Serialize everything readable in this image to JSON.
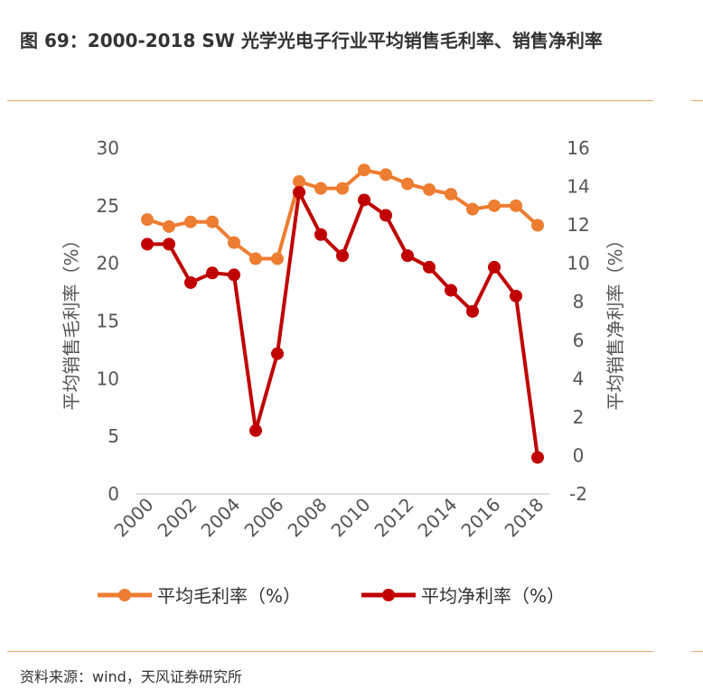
{
  "title": "图 69：2000-2018 SW 光学光电子行业平均销售毛利率、销售净利率",
  "source": "资料来源：wind，天风证券研究所",
  "colors": {
    "gross": "#ed7d31",
    "net": "#c00000",
    "rule": "#e8a86b"
  },
  "chart_data": {
    "type": "line",
    "x": [
      2000,
      2001,
      2002,
      2003,
      2004,
      2005,
      2006,
      2007,
      2008,
      2009,
      2010,
      2011,
      2012,
      2013,
      2014,
      2015,
      2016,
      2017,
      2018
    ],
    "x_tick_labels": [
      "2000",
      "2002",
      "2004",
      "2006",
      "2008",
      "2010",
      "2012",
      "2014",
      "2016",
      "2018"
    ],
    "ylabel_left": "平均销售毛利率（%）",
    "ylabel_right": "平均销售净利率（%）",
    "ylim_left": [
      0,
      30
    ],
    "ylim_right": [
      -2,
      16
    ],
    "y_ticks_left": [
      "0",
      "5",
      "10",
      "15",
      "20",
      "25",
      "30"
    ],
    "y_ticks_right": [
      "-2",
      "0",
      "2",
      "4",
      "6",
      "8",
      "10",
      "12",
      "14",
      "16"
    ],
    "legend_position": "bottom",
    "series": [
      {
        "name": "平均毛利率（%）",
        "axis": "left",
        "values": [
          23.8,
          23.2,
          23.6,
          23.6,
          21.8,
          20.4,
          20.4,
          27.1,
          26.5,
          26.5,
          28.1,
          27.7,
          26.9,
          26.4,
          26.0,
          24.7,
          25.0,
          25.0,
          23.3
        ]
      },
      {
        "name": "平均净利率（%）",
        "axis": "right",
        "values": [
          11.0,
          11.0,
          9.0,
          9.5,
          9.4,
          1.3,
          5.3,
          13.7,
          11.5,
          10.4,
          13.3,
          12.5,
          10.4,
          9.8,
          8.6,
          7.5,
          9.8,
          8.3,
          -0.1
        ]
      }
    ]
  }
}
